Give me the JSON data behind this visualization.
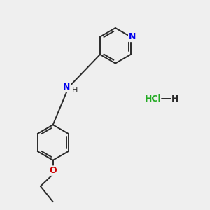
{
  "bg_color": "#efefef",
  "bond_color": "#2a2a2a",
  "N_color": "#0000ee",
  "O_color": "#cc0000",
  "Cl_color": "#22aa22",
  "text_color": "#2a2a2a",
  "bond_lw": 1.4,
  "figsize": [
    3.0,
    3.0
  ],
  "dpi": 100,
  "xlim": [
    0,
    10
  ],
  "ylim": [
    0,
    10
  ]
}
